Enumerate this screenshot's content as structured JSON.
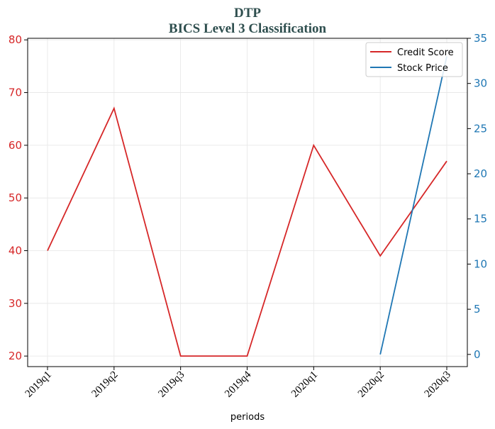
{
  "chart_data": {
    "type": "line",
    "title": "DTP",
    "subtitle": "BICS Level 3 Classification",
    "xlabel": "periods",
    "ylabel": "",
    "ylabel_right": "",
    "categories": [
      "2019q1",
      "2019q2",
      "2019q3",
      "2019q4",
      "2020q1",
      "2020q2",
      "2020q3"
    ],
    "ylim": [
      18,
      80.3
    ],
    "ylim_right": [
      -1.35,
      35
    ],
    "yticks_left": [
      20,
      30,
      40,
      50,
      60,
      70,
      80
    ],
    "yticks_right": [
      0,
      5,
      10,
      15,
      20,
      25,
      30,
      35
    ],
    "grid": true,
    "legend_position": "top-right",
    "series": [
      {
        "name": "Credit Score",
        "axis": "left",
        "color": "#d62728",
        "values": [
          40,
          67,
          20,
          20,
          60,
          39,
          57
        ]
      },
      {
        "name": "Stock Price",
        "axis": "right",
        "color": "#1f77b4",
        "values": [
          null,
          null,
          null,
          null,
          null,
          0,
          33
        ]
      }
    ]
  }
}
